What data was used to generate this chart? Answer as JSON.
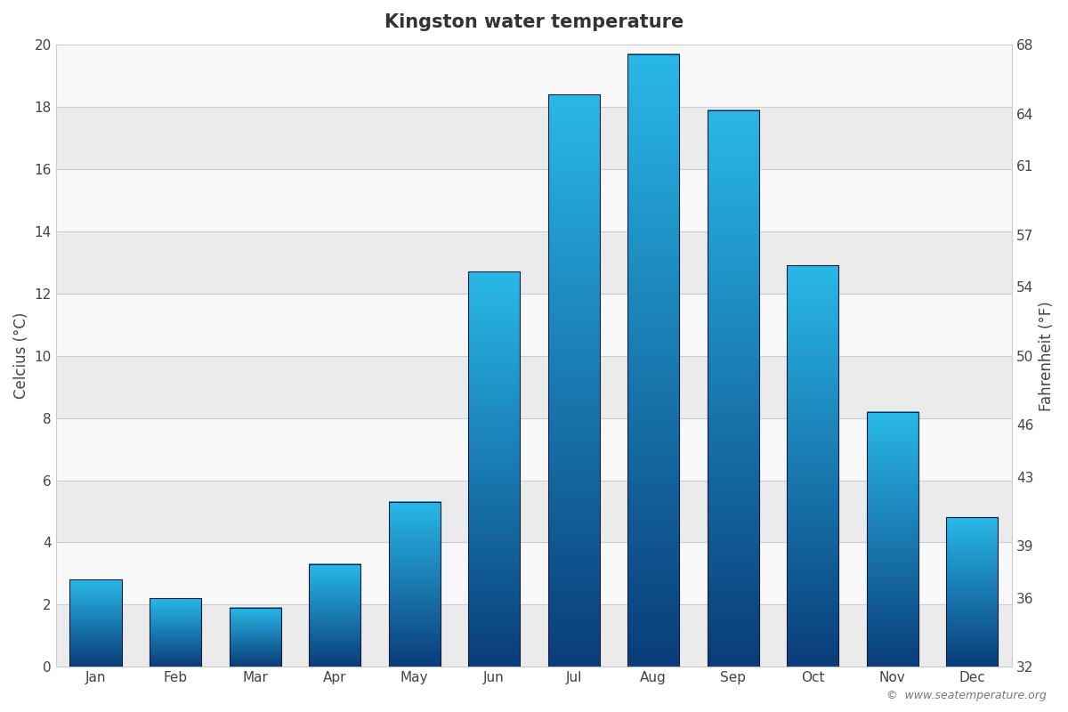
{
  "title": "Kingston water temperature",
  "months": [
    "Jan",
    "Feb",
    "Mar",
    "Apr",
    "May",
    "Jun",
    "Jul",
    "Aug",
    "Sep",
    "Oct",
    "Nov",
    "Dec"
  ],
  "values_c": [
    2.8,
    2.2,
    1.9,
    3.3,
    5.3,
    12.7,
    18.4,
    19.7,
    17.9,
    12.9,
    8.2,
    4.8
  ],
  "ylim_c": [
    0,
    20
  ],
  "yticks_c": [
    0,
    2,
    4,
    6,
    8,
    10,
    12,
    14,
    16,
    18,
    20
  ],
  "yticks_f": [
    32,
    36,
    39,
    43,
    46,
    50,
    54,
    57,
    61,
    64,
    68
  ],
  "ylabel_left": "Celcius (°C)",
  "ylabel_right": "Fahrenheit (°F)",
  "background_color": "#ffffff",
  "plot_bg_color": "#f5f5f5",
  "band_colors": [
    "#ebebeb",
    "#f8f8f8"
  ],
  "grid_color": "#cccccc",
  "bar_color_top": "#29b8e8",
  "bar_color_bottom": "#0a3d7a",
  "watermark": "©  www.seatemperature.org",
  "title_fontsize": 15,
  "label_fontsize": 12,
  "tick_fontsize": 11,
  "bar_width": 0.65
}
